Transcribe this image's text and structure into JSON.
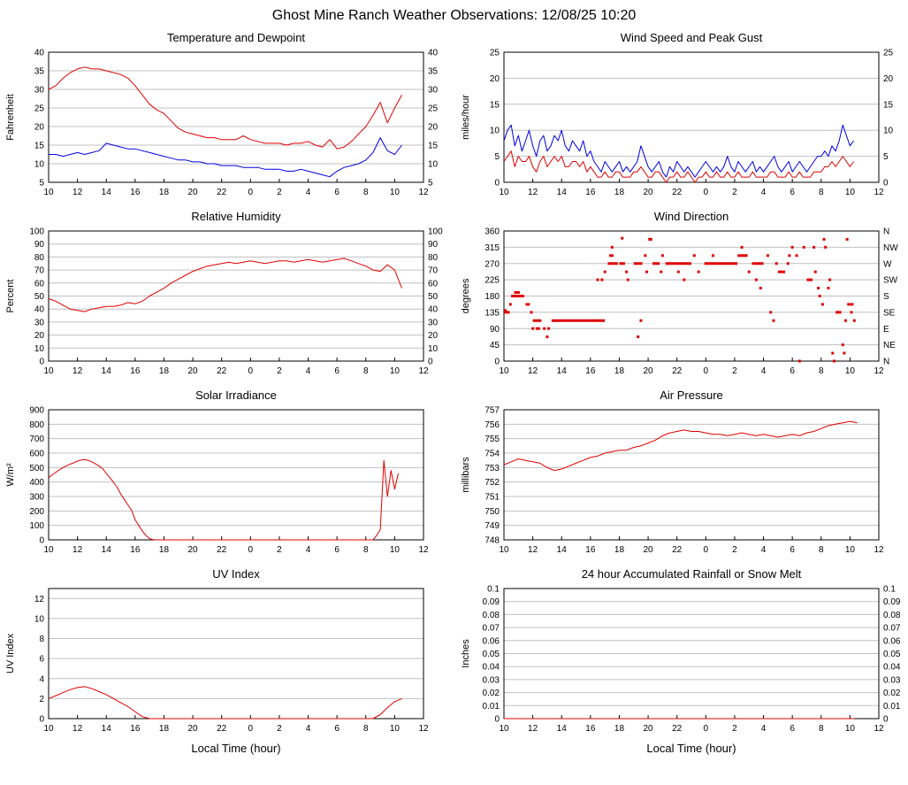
{
  "page": {
    "title": "Ghost Mine Ranch Weather Observations: 12/08/25 10:20",
    "xticks": [
      "10",
      "12",
      "14",
      "16",
      "18",
      "20",
      "22",
      "0",
      "2",
      "4",
      "6",
      "8",
      "10",
      "12"
    ],
    "xlim_hours": [
      0,
      26
    ],
    "colors": {
      "line_red": "#e00000",
      "line_blue": "#0000e0",
      "grid": "#c0c0c0",
      "axis": "#000000",
      "background": "#ffffff"
    }
  },
  "chart_data": [
    {
      "id": "temperature-dewpoint",
      "type": "line",
      "title": "Temperature and Dewpoint",
      "ylabel": "Fahrenheit",
      "ylim": [
        5,
        40
      ],
      "yticks": [
        5,
        10,
        15,
        20,
        25,
        30,
        35,
        40
      ],
      "right_ticks": true,
      "series": [
        {
          "name": "Temperature",
          "color": "#e00000",
          "t0": 0,
          "dt": 0.5,
          "values": [
            30,
            31,
            33,
            34.5,
            35.5,
            36,
            35.5,
            35.5,
            35,
            34.5,
            34,
            33,
            31,
            28.5,
            26,
            24.5,
            23.5,
            21.5,
            19.5,
            18.5,
            18,
            17.5,
            17,
            17,
            16.5,
            16.5,
            16.5,
            17.5,
            16.5,
            16,
            15.5,
            15.5,
            15.5,
            15,
            15.5,
            15.5,
            16,
            15,
            14.5,
            16.5,
            14,
            14.5,
            16,
            18,
            20,
            23,
            26.5,
            21,
            25,
            28.5
          ]
        },
        {
          "name": "Dewpoint",
          "color": "#0000e0",
          "t0": 0,
          "dt": 0.5,
          "values": [
            12.5,
            12.5,
            12,
            12.5,
            13,
            12.5,
            13,
            13.5,
            15.5,
            15,
            14.5,
            14,
            14,
            13.5,
            13,
            12.5,
            12,
            11.5,
            11,
            11,
            10.5,
            10.5,
            10,
            10,
            9.5,
            9.5,
            9.5,
            9,
            9,
            9,
            8.5,
            8.5,
            8.5,
            8,
            8,
            8.5,
            8,
            7.5,
            7,
            6.5,
            8,
            9,
            9.5,
            10,
            11,
            13,
            17,
            13.5,
            12.5,
            15
          ]
        }
      ]
    },
    {
      "id": "wind-speed-gust",
      "type": "line",
      "title": "Wind Speed and Peak Gust",
      "ylabel": "miles/hour",
      "ylim": [
        0,
        25
      ],
      "yticks": [
        0,
        5,
        10,
        15,
        20,
        25
      ],
      "right_ticks": true,
      "series": [
        {
          "name": "Peak Gust",
          "color": "#0000e0",
          "t0": 0,
          "dt": 0.25,
          "values": [
            8,
            10,
            11,
            7,
            9,
            6,
            8,
            10,
            7,
            5,
            8,
            9,
            6,
            7,
            9,
            8,
            10,
            7,
            6,
            8,
            7,
            6,
            8,
            5,
            6,
            4,
            3,
            2,
            4,
            3,
            2,
            3,
            4,
            2,
            3,
            2,
            3,
            4,
            7,
            5,
            3,
            2,
            3,
            4,
            2,
            1,
            3,
            2,
            4,
            3,
            2,
            3,
            2,
            1,
            2,
            3,
            4,
            3,
            2,
            3,
            2,
            3,
            5,
            3,
            2,
            4,
            3,
            2,
            3,
            4,
            2,
            3,
            2,
            3,
            4,
            5,
            3,
            2,
            3,
            4,
            2,
            3,
            4,
            3,
            2,
            3,
            4,
            5,
            5,
            6,
            5,
            7,
            6,
            8,
            11,
            9,
            7,
            8
          ]
        },
        {
          "name": "Wind Speed",
          "color": "#e00000",
          "t0": 0,
          "dt": 0.25,
          "values": [
            4,
            5,
            6,
            3,
            5,
            4,
            4,
            5,
            3,
            2,
            4,
            5,
            3,
            4,
            5,
            4,
            5,
            3,
            3,
            4,
            4,
            3,
            4,
            2,
            3,
            2,
            1,
            1,
            2,
            1,
            1,
            2,
            2,
            1,
            1,
            1,
            2,
            2,
            3,
            2,
            1,
            1,
            2,
            2,
            1,
            0,
            1,
            1,
            2,
            1,
            1,
            2,
            1,
            0,
            1,
            1,
            2,
            1,
            1,
            2,
            1,
            1,
            2,
            1,
            1,
            2,
            1,
            1,
            1,
            2,
            1,
            1,
            1,
            1,
            2,
            2,
            1,
            1,
            1,
            2,
            1,
            1,
            2,
            1,
            1,
            1,
            2,
            2,
            2,
            3,
            3,
            4,
            3,
            4,
            5,
            4,
            3,
            4
          ]
        }
      ]
    },
    {
      "id": "relative-humidity",
      "type": "line",
      "title": "Relative Humidity",
      "ylabel": "Percent",
      "ylim": [
        0,
        100
      ],
      "yticks": [
        0,
        10,
        20,
        30,
        40,
        50,
        60,
        70,
        80,
        90,
        100
      ],
      "right_ticks": true,
      "series": [
        {
          "name": "Relative Humidity",
          "color": "#e00000",
          "t0": 0,
          "dt": 0.5,
          "values": [
            48,
            46,
            43,
            40,
            39,
            38,
            40,
            41,
            42,
            42,
            43,
            45,
            44,
            46,
            50,
            53,
            56,
            60,
            63,
            66,
            69,
            71,
            73,
            74,
            75,
            76,
            75,
            76,
            77,
            76,
            75,
            76,
            77,
            77,
            76,
            77,
            78,
            77,
            76,
            77,
            78,
            79,
            77,
            75,
            73,
            70,
            69,
            74,
            70,
            56
          ]
        }
      ]
    },
    {
      "id": "wind-direction",
      "type": "scatter",
      "title": "Wind Direction",
      "ylabel": "degrees",
      "ylim": [
        0,
        360
      ],
      "yticks": [
        0,
        45,
        90,
        135,
        180,
        225,
        270,
        315,
        360
      ],
      "right_ticks": true,
      "right_labels": [
        "N",
        "NE",
        "E",
        "SE",
        "S",
        "SW",
        "W",
        "NW",
        "N"
      ],
      "color": "#e00000",
      "segments": [
        [
          0,
          0.4,
          135
        ],
        [
          0.5,
          1.4,
          180
        ],
        [
          0.7,
          1.1,
          190
        ],
        [
          1.5,
          1.8,
          157
        ],
        [
          2,
          2.6,
          112
        ],
        [
          2.2,
          2.5,
          90
        ],
        [
          3.3,
          7,
          112
        ],
        [
          7.2,
          7.9,
          270
        ],
        [
          7.3,
          7.6,
          292
        ],
        [
          8,
          8.4,
          270
        ],
        [
          9,
          9.6,
          270
        ],
        [
          10.3,
          10.8,
          270
        ],
        [
          11.2,
          13,
          270
        ],
        [
          13.9,
          16.2,
          270
        ],
        [
          16.2,
          16.9,
          292
        ],
        [
          17.2,
          18,
          270
        ],
        [
          19,
          19.5,
          247
        ],
        [
          21,
          21.4,
          225
        ],
        [
          23,
          23.4,
          135
        ],
        [
          24,
          24.25,
          157
        ]
      ],
      "points": [
        [
          0.1,
          140
        ],
        [
          0.45,
          157
        ],
        [
          1.9,
          135
        ],
        [
          2,
          90
        ],
        [
          2.8,
          90
        ],
        [
          3,
          67
        ],
        [
          3.1,
          90
        ],
        [
          6.5,
          225
        ],
        [
          6.8,
          225
        ],
        [
          7,
          247
        ],
        [
          7.5,
          315
        ],
        [
          8.2,
          340
        ],
        [
          8.5,
          247
        ],
        [
          8.6,
          225
        ],
        [
          9.3,
          67
        ],
        [
          9.5,
          112
        ],
        [
          9.8,
          292
        ],
        [
          9.9,
          247
        ],
        [
          10.1,
          337
        ],
        [
          10.2,
          337
        ],
        [
          10.9,
          247
        ],
        [
          11,
          292
        ],
        [
          12.1,
          247
        ],
        [
          12.5,
          225
        ],
        [
          13.2,
          292
        ],
        [
          13.5,
          247
        ],
        [
          14.5,
          292
        ],
        [
          16.5,
          315
        ],
        [
          17,
          247
        ],
        [
          17.5,
          225
        ],
        [
          17.8,
          202
        ],
        [
          18.3,
          292
        ],
        [
          18.5,
          135
        ],
        [
          18.7,
          112
        ],
        [
          18.9,
          270
        ],
        [
          19.7,
          270
        ],
        [
          19.8,
          292
        ],
        [
          20,
          315
        ],
        [
          20.3,
          292
        ],
        [
          20.5,
          0
        ],
        [
          20.8,
          315
        ],
        [
          21.5,
          315
        ],
        [
          21.6,
          247
        ],
        [
          21.8,
          202
        ],
        [
          21.9,
          180
        ],
        [
          22.1,
          157
        ],
        [
          22.2,
          337
        ],
        [
          22.3,
          315
        ],
        [
          22.5,
          202
        ],
        [
          22.6,
          225
        ],
        [
          22.8,
          22
        ],
        [
          22.9,
          0
        ],
        [
          23.5,
          45
        ],
        [
          23.6,
          22
        ],
        [
          23.7,
          112
        ],
        [
          23.8,
          337
        ],
        [
          23.9,
          157
        ],
        [
          24.1,
          135
        ],
        [
          24.3,
          112
        ]
      ]
    },
    {
      "id": "solar-irradiance",
      "type": "line",
      "title": "Solar Irradiance",
      "ylabel": "W/m²",
      "ylim": [
        0,
        900
      ],
      "yticks": [
        0,
        100,
        200,
        300,
        400,
        500,
        600,
        700,
        800,
        900
      ],
      "right_ticks": false,
      "series": [
        {
          "name": "Solar Irradiance",
          "color": "#e00000",
          "t0": 0,
          "dt": 0.25,
          "values": [
            430,
            450,
            468,
            484,
            500,
            513,
            524,
            533,
            545,
            552,
            555,
            550,
            540,
            526,
            510,
            492,
            460,
            430,
            398,
            364,
            318,
            280,
            242,
            205,
            140,
            100,
            62,
            30,
            8,
            2,
            0,
            0,
            0,
            0,
            0,
            0,
            0,
            0,
            0,
            0,
            0,
            0,
            0,
            0,
            0,
            0,
            0,
            0,
            0,
            0,
            0,
            0,
            0,
            0,
            0,
            0,
            0,
            0,
            0,
            0,
            0,
            0,
            0,
            0,
            0,
            0,
            0,
            0,
            0,
            0,
            0,
            0,
            0,
            0,
            0,
            0,
            0,
            0,
            0,
            0,
            0,
            0,
            0,
            0,
            0,
            0,
            0,
            0,
            0,
            0,
            0,
            30,
            70,
            550,
            300,
            480,
            350,
            460
          ]
        }
      ]
    },
    {
      "id": "air-pressure",
      "type": "line",
      "title": "Air Pressure",
      "ylabel": "millibars",
      "ylim": [
        748,
        757
      ],
      "yticks": [
        748,
        749,
        750,
        751,
        752,
        753,
        754,
        755,
        756,
        757
      ],
      "right_ticks": false,
      "series": [
        {
          "name": "Air Pressure",
          "color": "#e00000",
          "t0": 0,
          "dt": 0.5,
          "values": [
            753.2,
            753.4,
            753.6,
            753.5,
            753.4,
            753.3,
            753.0,
            752.8,
            752.9,
            753.1,
            753.3,
            753.5,
            753.7,
            753.8,
            754.0,
            754.1,
            754.2,
            754.2,
            754.4,
            754.5,
            754.7,
            754.9,
            755.2,
            755.4,
            755.5,
            755.6,
            755.5,
            755.5,
            755.4,
            755.3,
            755.3,
            755.2,
            755.3,
            755.4,
            755.3,
            755.2,
            755.3,
            755.2,
            755.1,
            755.2,
            755.3,
            755.2,
            755.4,
            755.5,
            755.7,
            755.9,
            756.0,
            756.1,
            756.2,
            756.1
          ]
        }
      ]
    },
    {
      "id": "uv-index",
      "type": "line",
      "title": "UV Index",
      "ylabel": "UV Index",
      "xlabel": "Local Time (hour)",
      "ylim": [
        0,
        13
      ],
      "yticks": [
        0,
        2,
        4,
        6,
        8,
        10,
        12
      ],
      "right_ticks": false,
      "series": [
        {
          "name": "UV Index",
          "color": "#e00000",
          "t0": 0,
          "dt": 0.5,
          "values": [
            2,
            2.3,
            2.6,
            2.9,
            3.1,
            3.2,
            3,
            2.7,
            2.4,
            2,
            1.6,
            1.2,
            0.7,
            0.2,
            0,
            0,
            0,
            0,
            0,
            0,
            0,
            0,
            0,
            0,
            0,
            0,
            0,
            0,
            0,
            0,
            0,
            0,
            0,
            0,
            0,
            0,
            0,
            0,
            0,
            0,
            0,
            0,
            0,
            0,
            0,
            0,
            0.4,
            1.1,
            1.7,
            2
          ]
        }
      ]
    },
    {
      "id": "rainfall",
      "type": "line",
      "title": "24 hour Accumulated Rainfall or Snow Melt",
      "ylabel": "Inches",
      "xlabel": "Local Time (hour)",
      "ylim": [
        0,
        0.1
      ],
      "yticks": [
        0,
        0.01,
        0.02,
        0.03,
        0.04,
        0.05,
        0.06,
        0.07,
        0.08,
        0.09,
        0.1
      ],
      "ytick_labels": [
        "0",
        "0.01",
        "0.02",
        "0.03",
        "0.04",
        "0.05",
        "0.06",
        "0.07",
        "0.08",
        "0.09",
        "0.1"
      ],
      "right_ticks": true,
      "series": [
        {
          "name": "Rainfall",
          "color": "#e00000",
          "t0": 0,
          "dt": 24.3,
          "values": [
            0,
            0
          ]
        }
      ]
    }
  ]
}
